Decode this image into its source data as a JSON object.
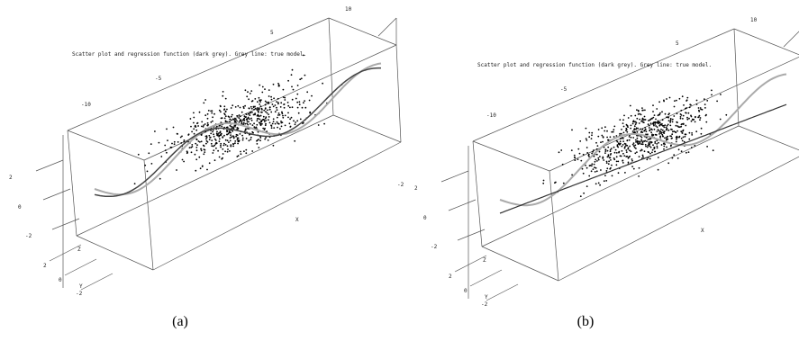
{
  "panels": [
    {
      "title": "Scatter plot and regression function (dark grey). Grey line: true model.",
      "caption": "(a)",
      "x_label": "X",
      "x_ticks": [
        "-10",
        "-5",
        "5",
        "10"
      ],
      "z_label": "Z",
      "z_ticks": [
        "2",
        "0",
        "-2"
      ],
      "y_label": "Y",
      "y_ticks": [
        "2",
        "0",
        "-2"
      ],
      "left_ticks": [
        "2",
        "0",
        "-2"
      ],
      "right_tick": "-2"
    },
    {
      "title": "Scatter plot and regression function (dark grey). Grey line: true model.",
      "caption": "(b)",
      "x_label": "X",
      "x_ticks": [
        "-10",
        "-5",
        "5",
        "10"
      ],
      "z_label": "Z",
      "z_ticks": [
        "2",
        "0",
        "-2"
      ],
      "y_label": "Y",
      "y_ticks": [
        "2",
        "0",
        "-2"
      ],
      "left_ticks": [
        "2",
        "0",
        "-2"
      ],
      "right_tick": "-2"
    }
  ]
}
